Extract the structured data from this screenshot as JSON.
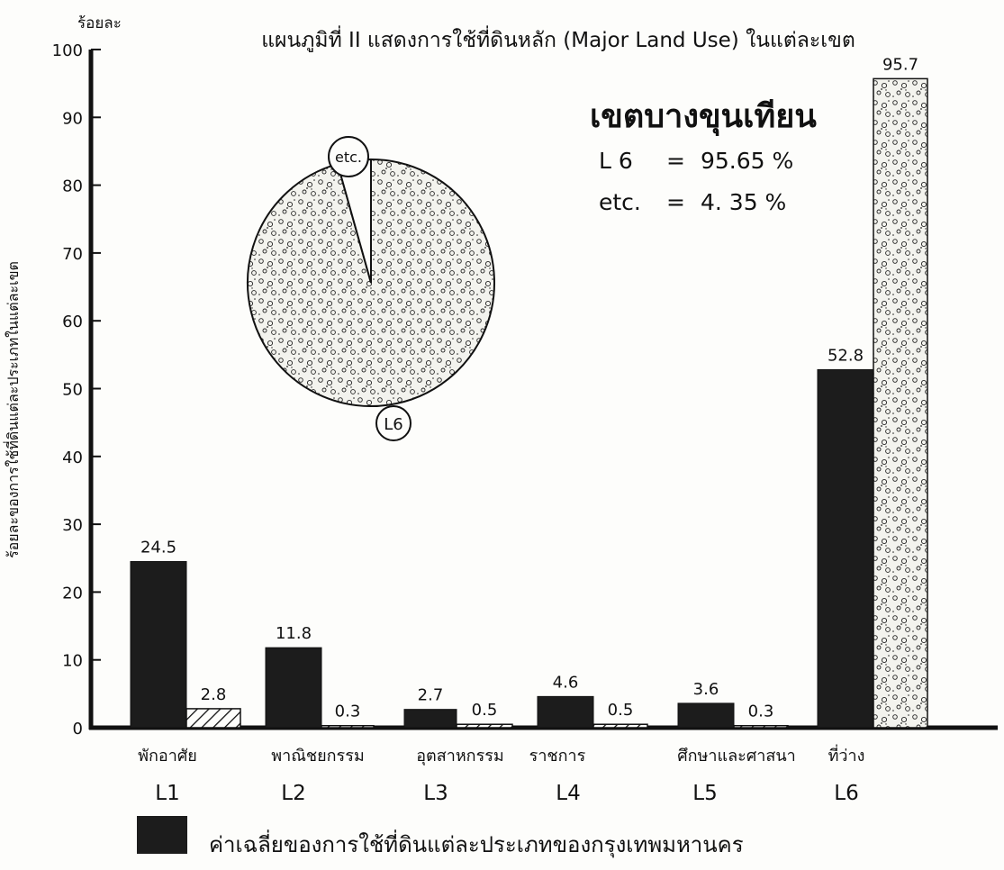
{
  "chart_data": {
    "type": "bar",
    "title": "แผนภูมิที่ II แสดงการใช้ที่ดินหลัก (Major Land Use) ในแต่ละเขต",
    "ylabel": "ร้อยละของการใช้ที่ดินแต่ละประเภทในแต่ละเขต",
    "y_unit": "ร้อยละ",
    "ylim": [
      0,
      100
    ],
    "yticks": [
      0,
      10,
      20,
      30,
      40,
      50,
      60,
      70,
      80,
      90,
      100
    ],
    "categories": [
      {
        "name": "พักอาศัย",
        "code": "L1"
      },
      {
        "name": "พาณิชยกรรม",
        "code": "L2"
      },
      {
        "name": "อุตสาหกรรม",
        "code": "L3"
      },
      {
        "name": "ราชการ",
        "code": "L4"
      },
      {
        "name": "ศึกษาและศาสนา",
        "code": "L5"
      },
      {
        "name": "ที่ว่าง",
        "code": "L6"
      }
    ],
    "series": [
      {
        "name": "ค่าเฉลี่ยของการใช้ที่ดินแต่ละประเภทของกรุงเทพมหานคร",
        "values": [
          24.5,
          11.8,
          2.7,
          4.6,
          3.6,
          52.8
        ],
        "labels": [
          "24.5",
          "11.8",
          "2.7",
          "4.6",
          "3.6",
          "52.8"
        ],
        "color": "#1c1c1c"
      },
      {
        "values": [
          2.8,
          0.3,
          0.5,
          0.5,
          0.3,
          95.7
        ],
        "labels": [
          "2.8",
          "0.3",
          "0.5",
          "0.5",
          "0.3",
          "95.7"
        ]
      }
    ],
    "legend": {
      "label": "ค่าเฉลี่ยของการใช้ที่ดินแต่ละประเภทของกรุงเทพมหานคร",
      "position": "bottom"
    },
    "district": {
      "name": "เขตบางขุนเทียน",
      "stats": [
        {
          "label": "L 6",
          "value": "95.65 %"
        },
        {
          "label": "etc.",
          "value": "4. 35 %"
        }
      ]
    },
    "pie": {
      "slices": [
        {
          "label": "L6",
          "value": 95.65
        },
        {
          "label": "etc.",
          "value": 4.35
        }
      ]
    }
  }
}
